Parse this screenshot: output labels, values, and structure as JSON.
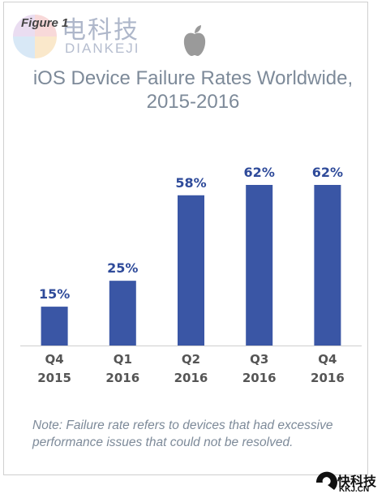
{
  "figure_label": "Figure 1",
  "watermark": {
    "cn": "电科技",
    "en": "DIANKEJI",
    "bottom_cn": "快科技",
    "bottom_en": "KKJ.CN"
  },
  "icon": "apple-logo-icon",
  "colors": {
    "bar": "#3a56a5",
    "value_label": "#2f4b9a",
    "title": "#7d8a99",
    "axis_label": "#555555"
  },
  "chart_data": {
    "type": "bar",
    "title": "iOS Device Failure Rates Worldwide,\n2015-2016",
    "categories": [
      "Q4\n2015",
      "Q1\n2016",
      "Q2\n2016",
      "Q3\n2016",
      "Q4\n2016"
    ],
    "values": [
      15,
      25,
      58,
      62,
      62
    ],
    "value_labels": [
      "15%",
      "25%",
      "58%",
      "62%",
      "62%"
    ],
    "ylim": [
      0,
      62
    ],
    "grid": false
  },
  "note": "Note: Failure rate refers to devices that had excessive performance issues that could not be resolved."
}
